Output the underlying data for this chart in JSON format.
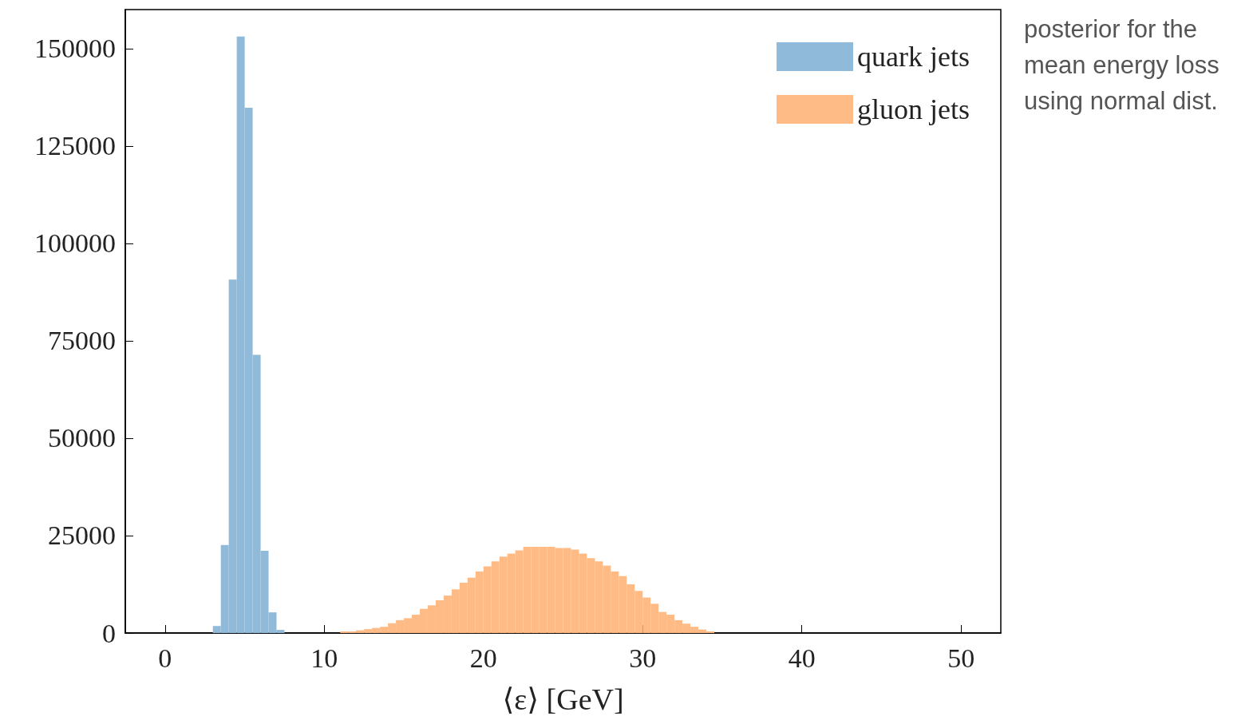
{
  "chart_data": {
    "type": "histogram",
    "xlabel": "⟨ε⟩ [GeV]",
    "annotations": [
      "posterior for the mean energy loss using normal dist."
    ],
    "xlim": [
      -2.5,
      52.5
    ],
    "xticks": [
      0,
      10,
      20,
      30,
      40,
      50
    ],
    "ylim": [
      0,
      160000
    ],
    "yticks": [
      0,
      25000,
      50000,
      75000,
      100000,
      125000,
      150000
    ],
    "grid": false,
    "legend": "top right",
    "bins": [
      3.0,
      3.5,
      4.0,
      4.5,
      5.0,
      5.5,
      6.0,
      6.5,
      7.0,
      7.5,
      8.0,
      8.5,
      9.0,
      9.5,
      10.0,
      10.5,
      11.0,
      11.5,
      12.0,
      12.5,
      13.0,
      13.5,
      14.0,
      14.5,
      15.0,
      15.5,
      16.0,
      16.5,
      17.0,
      17.5,
      18.0,
      18.5,
      19.0,
      19.5,
      20.0,
      20.5,
      21.0,
      21.5,
      22.0,
      22.5,
      23.0,
      23.5,
      24.0,
      24.5,
      25.0,
      25.5,
      26.0,
      26.5,
      27.0,
      27.5,
      28.0,
      28.5,
      29.0,
      29.5,
      30.0,
      30.5,
      31.0,
      31.5,
      32.0,
      32.5,
      33.0,
      33.5,
      34.0,
      34.5
    ],
    "series": [
      {
        "name": "quark jets",
        "color": "#8fbad9",
        "values": [
          1800,
          22600,
          90700,
          153100,
          134800,
          71400,
          21100,
          5300,
          800,
          null,
          null,
          null,
          null,
          null,
          null,
          null,
          null,
          null,
          null,
          null,
          null,
          null,
          null,
          null,
          null,
          null,
          null,
          null,
          null,
          null,
          null,
          null,
          null,
          null,
          null,
          null,
          null,
          null,
          null,
          null,
          null,
          null,
          null,
          null,
          null,
          null,
          null,
          null,
          null,
          null,
          null,
          null,
          null,
          null,
          null,
          null,
          null,
          null,
          null,
          null,
          null,
          null,
          null
        ]
      },
      {
        "name": "gluon jets",
        "color": "#ffbb85",
        "values": [
          null,
          null,
          null,
          null,
          null,
          null,
          null,
          null,
          null,
          null,
          null,
          null,
          null,
          null,
          null,
          null,
          400,
          400,
          700,
          1000,
          1300,
          1600,
          2500,
          3300,
          3800,
          4700,
          6200,
          7100,
          8400,
          9600,
          11200,
          12900,
          14200,
          15800,
          17100,
          18400,
          19600,
          20400,
          21200,
          22100,
          22100,
          22100,
          22100,
          21800,
          21800,
          21400,
          20400,
          19200,
          18400,
          17300,
          15800,
          14600,
          12500,
          10800,
          9100,
          7500,
          5400,
          4700,
          3300,
          2400,
          1600,
          900,
          400
        ]
      }
    ]
  }
}
